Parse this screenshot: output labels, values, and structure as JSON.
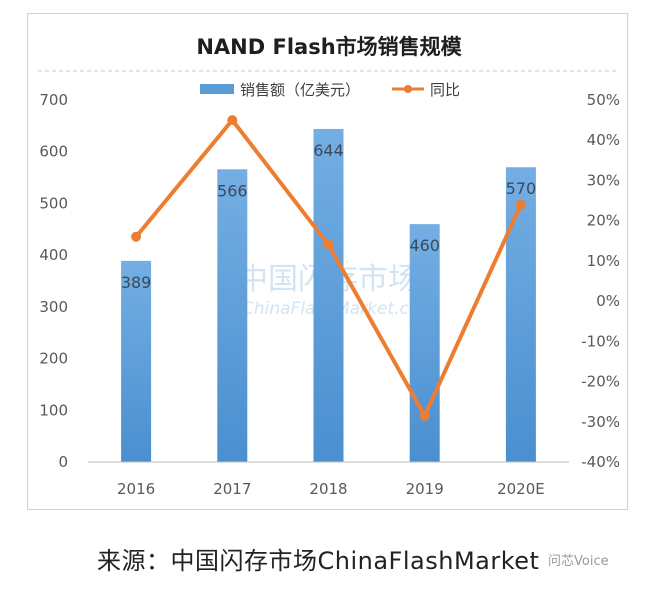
{
  "chart_data": {
    "type": "bar+line",
    "title": "NAND Flash市场销售规模",
    "categories": [
      "2016",
      "2017",
      "2018",
      "2019",
      "2020E"
    ],
    "series": [
      {
        "name": "销售额（亿美元）",
        "type": "bar",
        "axis": "left",
        "values": [
          389,
          566,
          644,
          460,
          570
        ],
        "color": "#5b9bd5"
      },
      {
        "name": "同比",
        "type": "line",
        "axis": "right",
        "values": [
          16,
          45,
          14,
          -28.5,
          24
        ],
        "unit": "%",
        "color": "#ed7d31"
      }
    ],
    "left_axis": {
      "ylim": [
        0,
        700
      ],
      "ticks": [
        "0",
        "100",
        "200",
        "300",
        "400",
        "500",
        "600",
        "700"
      ]
    },
    "right_axis": {
      "ylim": [
        -40,
        50
      ],
      "ticks": [
        "-40%",
        "-30%",
        "-20%",
        "-10%",
        "0%",
        "10%",
        "20%",
        "30%",
        "40%",
        "50%"
      ]
    },
    "bar_labels": [
      "389",
      "566",
      "644",
      "460",
      "570"
    ],
    "legend_position": "top",
    "grid": false,
    "watermark": [
      "中国闪存市场",
      "ChinaFlashMarket.com"
    ]
  },
  "source_text": "来源：中国闪存市场ChinaFlashMarket",
  "corner_watermark": "问芯Voice"
}
